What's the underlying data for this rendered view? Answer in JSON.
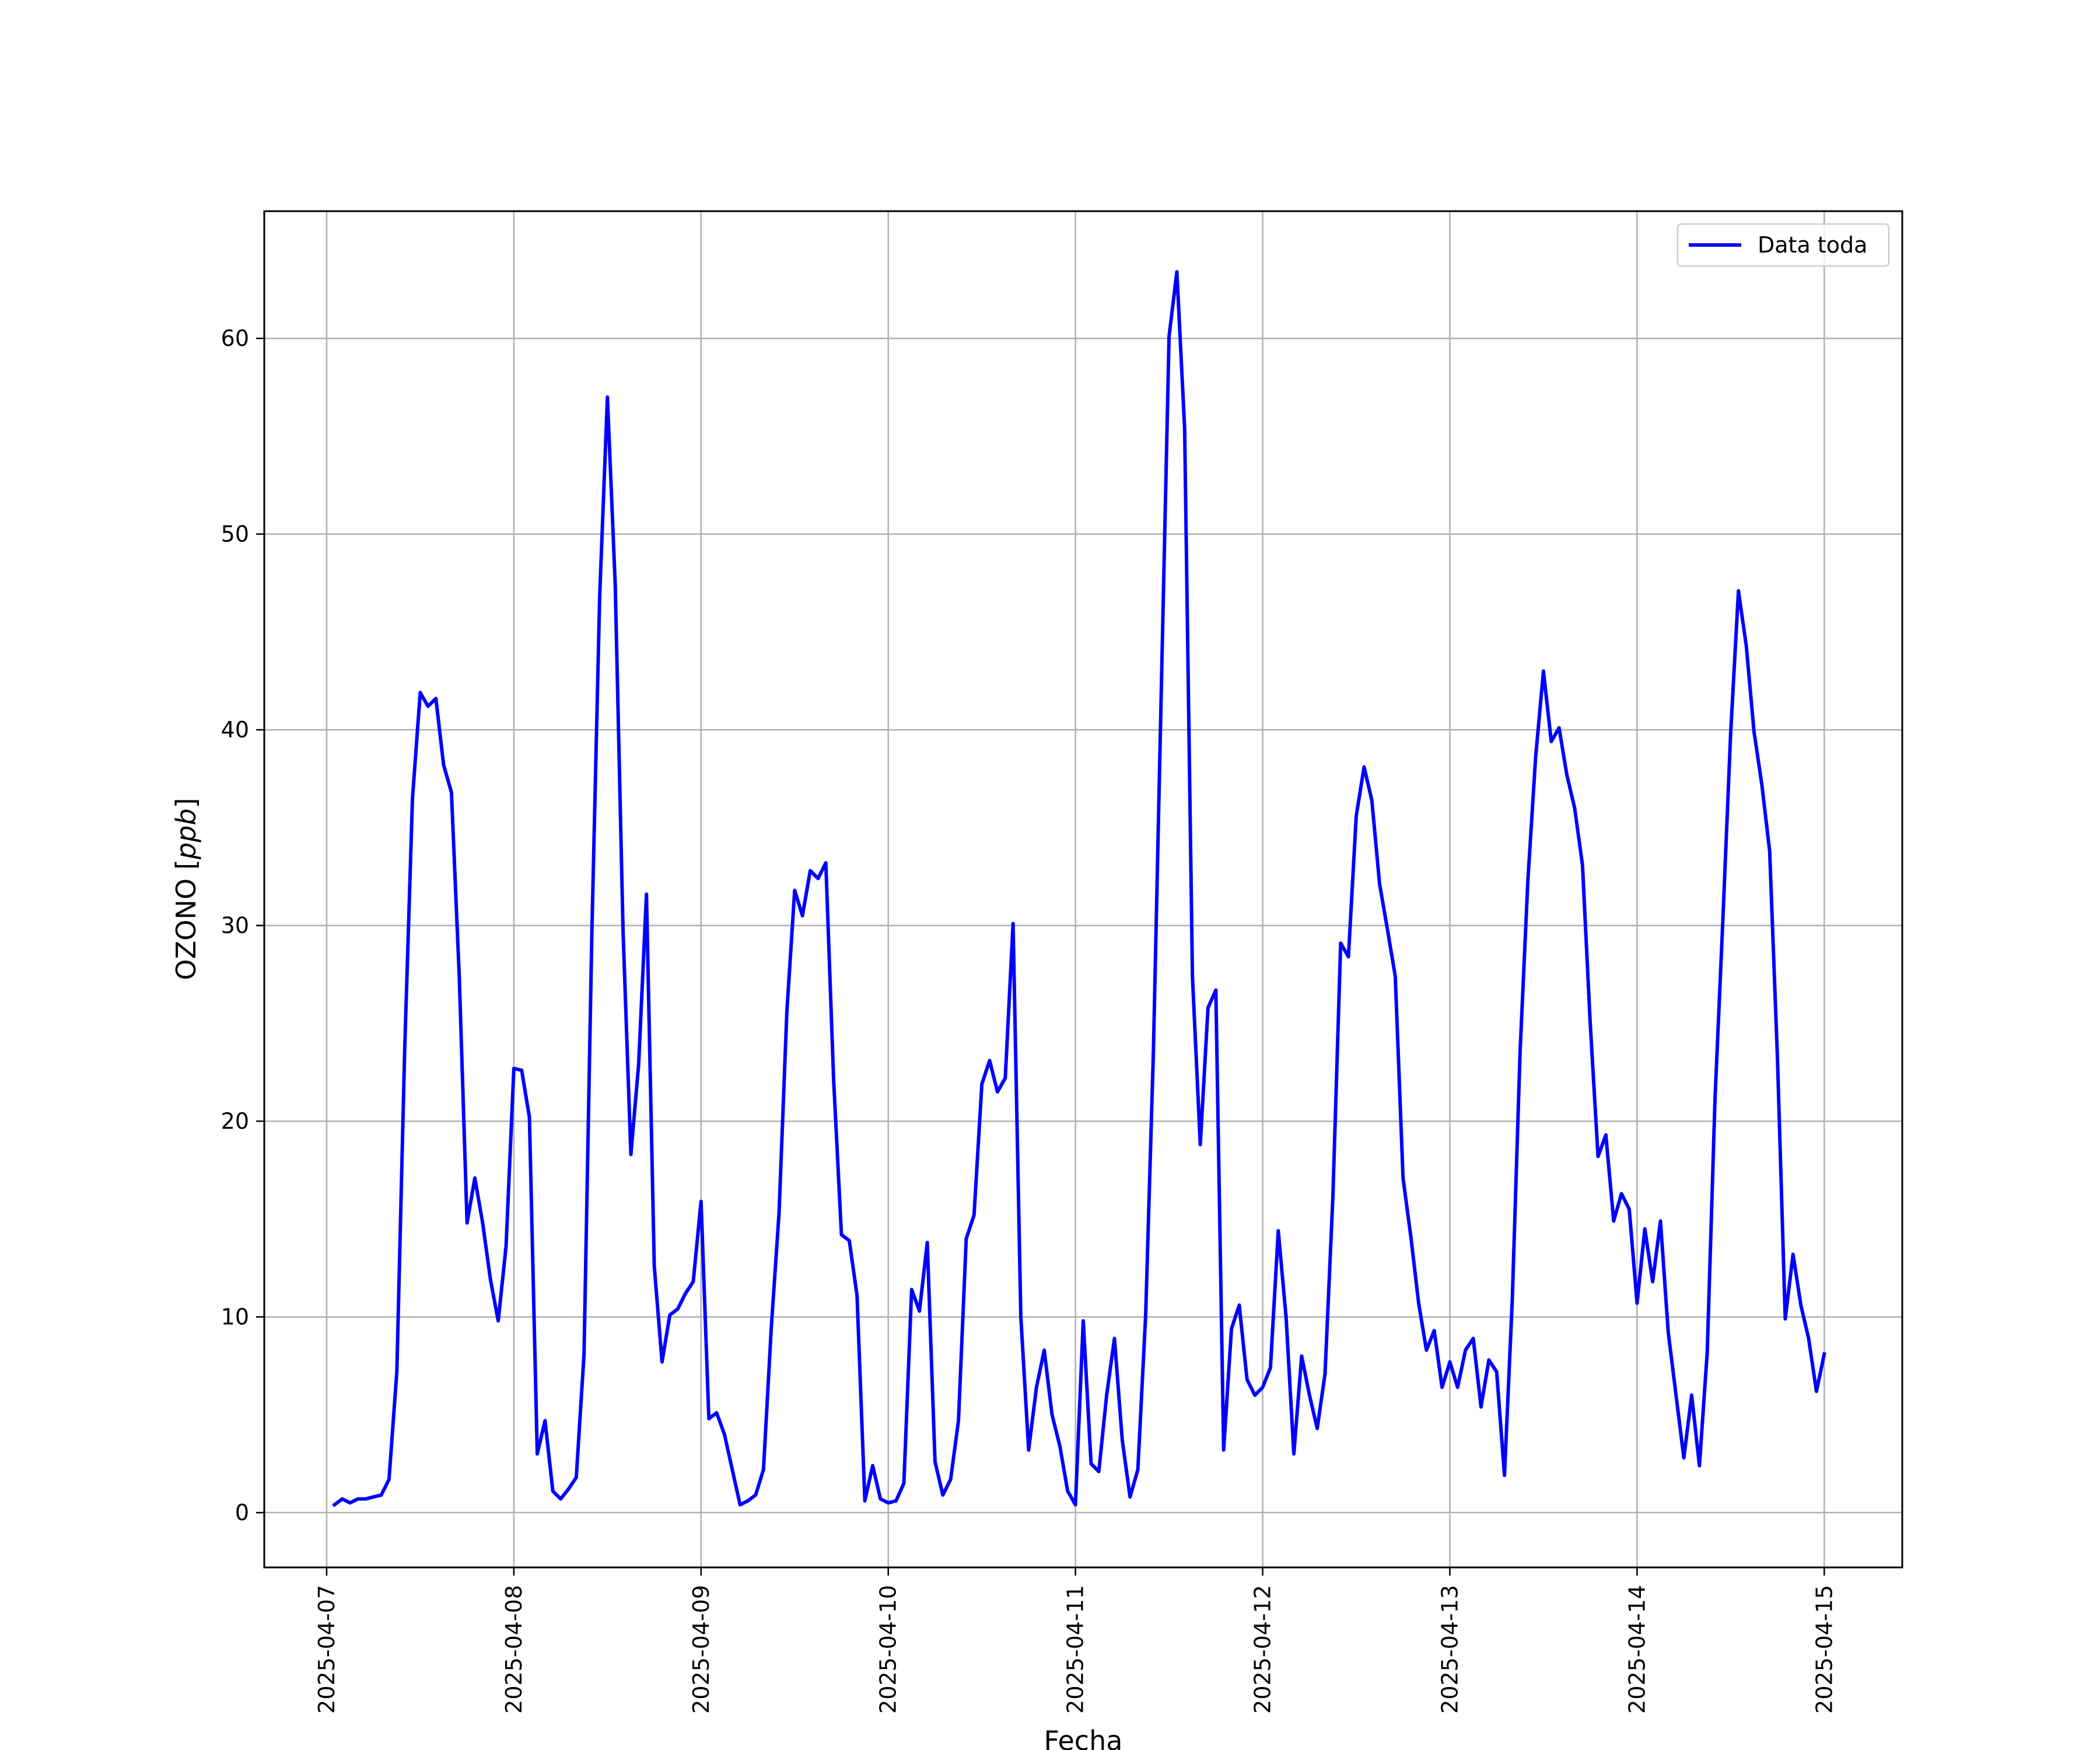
{
  "chart_data": {
    "type": "line",
    "xlabel": "Fecha",
    "ylabel": "OZONO [ppb]",
    "ylabel_parts": {
      "text": "OZONO ",
      "open": "[",
      "unit": "ppb",
      "close": "]"
    },
    "x_axis_type": "date",
    "xlim": [
      "2025-04-06T16:00",
      "2025-04-15T10:00"
    ],
    "ylim": [
      -2.8,
      66.5
    ],
    "x_ticks": [
      "2025-04-07",
      "2025-04-08",
      "2025-04-09",
      "2025-04-10",
      "2025-04-11",
      "2025-04-12",
      "2025-04-13",
      "2025-04-14",
      "2025-04-15"
    ],
    "y_ticks": [
      0,
      10,
      20,
      30,
      40,
      50,
      60
    ],
    "grid": true,
    "legend_position": "top-right",
    "line_color": "#0000ff",
    "series": [
      {
        "name": "Data toda",
        "color": "#0000ff",
        "x": [
          "2025-04-07T01:00",
          "2025-04-07T02:00",
          "2025-04-07T03:00",
          "2025-04-07T04:00",
          "2025-04-07T05:00",
          "2025-04-07T06:00",
          "2025-04-07T07:00",
          "2025-04-07T08:00",
          "2025-04-07T09:00",
          "2025-04-07T10:00",
          "2025-04-07T11:00",
          "2025-04-07T12:00",
          "2025-04-07T13:00",
          "2025-04-07T14:00",
          "2025-04-07T15:00",
          "2025-04-07T16:00",
          "2025-04-07T17:00",
          "2025-04-07T18:00",
          "2025-04-07T19:00",
          "2025-04-07T20:00",
          "2025-04-07T21:00",
          "2025-04-07T22:00",
          "2025-04-07T23:00",
          "2025-04-08T00:00",
          "2025-04-08T01:00",
          "2025-04-08T02:00",
          "2025-04-08T03:00",
          "2025-04-08T04:00",
          "2025-04-08T05:00",
          "2025-04-08T06:00",
          "2025-04-08T07:00",
          "2025-04-08T08:00",
          "2025-04-08T09:00",
          "2025-04-08T10:00",
          "2025-04-08T11:00",
          "2025-04-08T12:00",
          "2025-04-08T13:00",
          "2025-04-08T14:00",
          "2025-04-08T15:00",
          "2025-04-08T16:00",
          "2025-04-08T17:00",
          "2025-04-08T18:00",
          "2025-04-08T19:00",
          "2025-04-08T20:00",
          "2025-04-08T21:00",
          "2025-04-08T22:00",
          "2025-04-08T23:00",
          "2025-04-09T00:00",
          "2025-04-09T01:00",
          "2025-04-09T02:00",
          "2025-04-09T03:00",
          "2025-04-09T04:00",
          "2025-04-09T05:00",
          "2025-04-09T06:00",
          "2025-04-09T07:00",
          "2025-04-09T08:00",
          "2025-04-09T09:00",
          "2025-04-09T10:00",
          "2025-04-09T11:00",
          "2025-04-09T12:00",
          "2025-04-09T13:00",
          "2025-04-09T14:00",
          "2025-04-09T15:00",
          "2025-04-09T16:00",
          "2025-04-09T17:00",
          "2025-04-09T18:00",
          "2025-04-09T19:00",
          "2025-04-09T20:00",
          "2025-04-09T21:00",
          "2025-04-09T22:00",
          "2025-04-09T23:00",
          "2025-04-10T00:00",
          "2025-04-10T01:00",
          "2025-04-10T02:00",
          "2025-04-10T03:00",
          "2025-04-10T04:00",
          "2025-04-10T05:00",
          "2025-04-10T06:00",
          "2025-04-10T07:00",
          "2025-04-10T08:00",
          "2025-04-10T09:00",
          "2025-04-10T10:00",
          "2025-04-10T11:00",
          "2025-04-10T12:00",
          "2025-04-10T13:00",
          "2025-04-10T14:00",
          "2025-04-10T15:00",
          "2025-04-10T16:00",
          "2025-04-10T17:00",
          "2025-04-10T18:00",
          "2025-04-10T19:00",
          "2025-04-10T20:00",
          "2025-04-10T21:00",
          "2025-04-10T22:00",
          "2025-04-10T23:00",
          "2025-04-11T00:00",
          "2025-04-11T01:00",
          "2025-04-11T02:00",
          "2025-04-11T03:00",
          "2025-04-11T04:00",
          "2025-04-11T05:00",
          "2025-04-11T06:00",
          "2025-04-11T07:00",
          "2025-04-11T08:00",
          "2025-04-11T09:00",
          "2025-04-11T10:00",
          "2025-04-11T11:00",
          "2025-04-11T12:00",
          "2025-04-11T13:00",
          "2025-04-11T14:00",
          "2025-04-11T15:00",
          "2025-04-11T16:00",
          "2025-04-11T17:00",
          "2025-04-11T18:00",
          "2025-04-11T19:00",
          "2025-04-11T20:00",
          "2025-04-11T21:00",
          "2025-04-11T22:00",
          "2025-04-11T23:00",
          "2025-04-12T00:00",
          "2025-04-12T01:00",
          "2025-04-12T02:00",
          "2025-04-12T03:00",
          "2025-04-12T04:00",
          "2025-04-12T05:00",
          "2025-04-12T06:00",
          "2025-04-12T07:00",
          "2025-04-12T08:00",
          "2025-04-12T09:00",
          "2025-04-12T10:00",
          "2025-04-12T11:00",
          "2025-04-12T12:00",
          "2025-04-12T13:00",
          "2025-04-12T14:00",
          "2025-04-12T15:00",
          "2025-04-12T16:00",
          "2025-04-12T17:00",
          "2025-04-12T18:00",
          "2025-04-12T19:00",
          "2025-04-12T20:00",
          "2025-04-12T21:00",
          "2025-04-12T22:00",
          "2025-04-12T23:00",
          "2025-04-13T00:00",
          "2025-04-13T01:00",
          "2025-04-13T02:00",
          "2025-04-13T03:00",
          "2025-04-13T04:00",
          "2025-04-13T05:00",
          "2025-04-13T06:00",
          "2025-04-13T07:00",
          "2025-04-13T08:00",
          "2025-04-13T09:00",
          "2025-04-13T10:00",
          "2025-04-13T11:00",
          "2025-04-13T12:00",
          "2025-04-13T13:00",
          "2025-04-13T14:00",
          "2025-04-13T15:00",
          "2025-04-13T16:00",
          "2025-04-13T17:00",
          "2025-04-13T18:00",
          "2025-04-13T19:00",
          "2025-04-13T20:00",
          "2025-04-13T21:00",
          "2025-04-13T22:00",
          "2025-04-13T23:00",
          "2025-04-14T00:00",
          "2025-04-14T01:00",
          "2025-04-14T02:00",
          "2025-04-14T03:00",
          "2025-04-14T04:00",
          "2025-04-14T05:00",
          "2025-04-14T06:00",
          "2025-04-14T07:00",
          "2025-04-14T08:00",
          "2025-04-14T09:00",
          "2025-04-14T10:00",
          "2025-04-14T11:00",
          "2025-04-14T12:00",
          "2025-04-14T13:00",
          "2025-04-14T14:00",
          "2025-04-14T15:00",
          "2025-04-14T16:00",
          "2025-04-14T17:00",
          "2025-04-14T18:00",
          "2025-04-14T19:00",
          "2025-04-14T20:00",
          "2025-04-14T21:00",
          "2025-04-14T22:00",
          "2025-04-14T23:00",
          "2025-04-15T00:00"
        ],
        "values": [
          0.4,
          0.7,
          0.5,
          0.7,
          0.7,
          0.8,
          0.9,
          1.7,
          7.2,
          23.6,
          36.5,
          41.9,
          41.2,
          41.6,
          38.2,
          36.8,
          27.4,
          14.8,
          17.1,
          14.8,
          11.9,
          9.8,
          13.6,
          22.7,
          22.6,
          20.2,
          3.0,
          4.7,
          1.1,
          0.7,
          1.2,
          1.8,
          8.1,
          29.6,
          46.8,
          57.0,
          47.4,
          29.7,
          18.3,
          22.9,
          31.6,
          12.6,
          7.7,
          10.1,
          10.4,
          11.2,
          11.8,
          15.9,
          4.8,
          5.1,
          4.0,
          2.2,
          0.4,
          0.6,
          0.9,
          2.2,
          9.4,
          15.3,
          25.6,
          31.8,
          30.5,
          32.8,
          32.4,
          33.2,
          22.1,
          14.2,
          13.9,
          11.1,
          0.6,
          2.4,
          0.7,
          0.5,
          0.6,
          1.5,
          11.4,
          10.3,
          13.8,
          2.6,
          0.9,
          1.7,
          4.7,
          14.0,
          15.2,
          21.9,
          23.1,
          21.5,
          22.2,
          30.1,
          10.0,
          3.2,
          6.4,
          8.3,
          5.0,
          3.4,
          1.1,
          0.4,
          9.8,
          2.5,
          2.1,
          6.0,
          8.9,
          3.7,
          0.8,
          2.2,
          10.1,
          23.6,
          41.9,
          60.1,
          63.4,
          55.4,
          27.4,
          18.8,
          25.8,
          26.7,
          3.2,
          9.4,
          10.6,
          6.8,
          6.0,
          6.4,
          7.4,
          14.4,
          10.0,
          3.0,
          8.0,
          6.0,
          4.3,
          7.1,
          16.1,
          29.1,
          28.4,
          35.6,
          38.1,
          36.4,
          32.1,
          29.8,
          27.4,
          17.1,
          14.1,
          10.7,
          8.3,
          9.3,
          6.4,
          7.7,
          6.4,
          8.3,
          8.9,
          5.4,
          7.8,
          7.2,
          1.9,
          10.8,
          23.5,
          32.3,
          38.6,
          43.0,
          39.4,
          40.1,
          37.7,
          36.0,
          33.1,
          25.0,
          18.2,
          19.3,
          14.9,
          16.3,
          15.5,
          10.7,
          14.5,
          11.8,
          14.9,
          9.2,
          6.0,
          2.8,
          6.0,
          2.4,
          8.2,
          21.2,
          30.3,
          39.8,
          47.1,
          44.3,
          39.9,
          37.2,
          33.8,
          23.2,
          9.9,
          13.2,
          10.6,
          8.9,
          6.2,
          8.1
        ]
      }
    ]
  }
}
